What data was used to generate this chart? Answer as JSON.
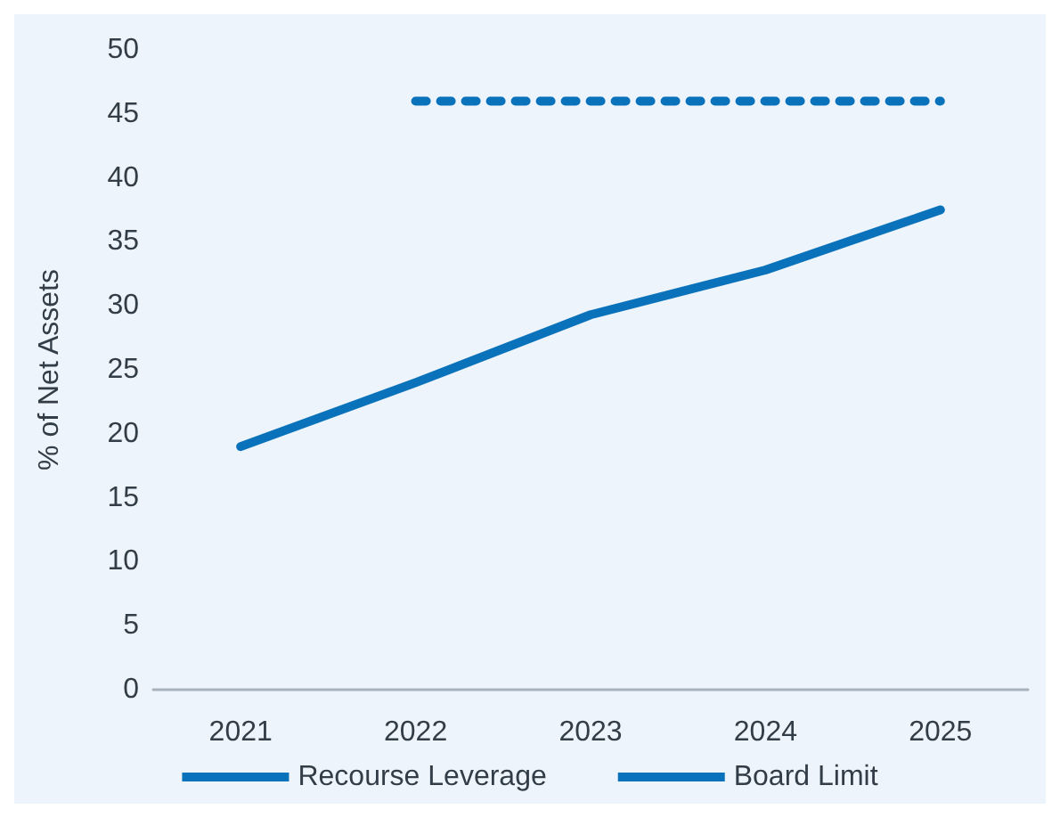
{
  "chart_data": {
    "type": "line",
    "ylabel": "% of Net Assets",
    "categories": [
      "2021",
      "2022",
      "2023",
      "2024",
      "2025"
    ],
    "series": [
      {
        "name": "Recourse Leverage",
        "color": "#0a72bb",
        "values": [
          19,
          24,
          29.3,
          32.8,
          37.5
        ],
        "line_style": "solid"
      },
      {
        "name": "Board Limit",
        "color": "#0a72bb",
        "values": [
          null,
          46,
          46,
          46,
          46
        ],
        "line_style": "dotted"
      }
    ],
    "ylim": [
      0,
      50
    ],
    "yticks": [
      0,
      5,
      10,
      15,
      20,
      25,
      30,
      35,
      40,
      45,
      50
    ],
    "grid": false,
    "legend": "bottom",
    "marker": "none"
  }
}
